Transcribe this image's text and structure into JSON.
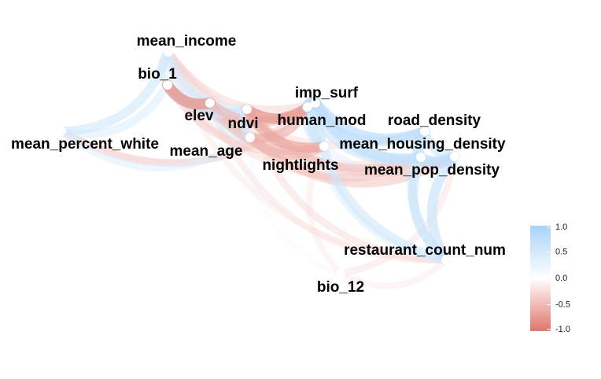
{
  "chart_data": {
    "type": "network",
    "subtype": "correlation_network",
    "title": "",
    "nodes": [
      {
        "id": "mean_income",
        "label": "mean_income"
      },
      {
        "id": "bio_1",
        "label": "bio_1"
      },
      {
        "id": "elev",
        "label": "elev"
      },
      {
        "id": "ndvi",
        "label": "ndvi"
      },
      {
        "id": "mean_age",
        "label": "mean_age"
      },
      {
        "id": "mean_percent_white",
        "label": "mean_percent_white"
      },
      {
        "id": "imp_surf",
        "label": "imp_surf"
      },
      {
        "id": "human_mod",
        "label": "human_mod"
      },
      {
        "id": "nightlights",
        "label": "nightlights"
      },
      {
        "id": "road_density",
        "label": "road_density"
      },
      {
        "id": "mean_housing_density",
        "label": "mean_housing_density"
      },
      {
        "id": "mean_pop_density",
        "label": "mean_pop_density"
      },
      {
        "id": "restaurant_count_num",
        "label": "restaurant_count_num"
      },
      {
        "id": "bio_12",
        "label": "bio_12"
      }
    ],
    "edges": [
      {
        "source": "mean_percent_white",
        "target": "mean_income",
        "r": 0.55
      },
      {
        "source": "mean_percent_white",
        "target": "bio_1",
        "r": 0.45
      },
      {
        "source": "mean_percent_white",
        "target": "mean_age",
        "r": 0.4
      },
      {
        "source": "mean_percent_white",
        "target": "human_mod",
        "r": -0.35
      },
      {
        "source": "mean_percent_white",
        "target": "imp_surf",
        "r": -0.3
      },
      {
        "source": "mean_income",
        "target": "bio_1",
        "r": 0.5
      },
      {
        "source": "mean_income",
        "target": "elev",
        "r": 0.5
      },
      {
        "source": "mean_income",
        "target": "ndvi",
        "r": 0.45
      },
      {
        "source": "mean_income",
        "target": "imp_surf",
        "r": -0.35
      },
      {
        "source": "mean_income",
        "target": "road_density",
        "r": -0.3
      },
      {
        "source": "mean_income",
        "target": "mean_housing_density",
        "r": -0.3
      },
      {
        "source": "mean_income",
        "target": "nightlights",
        "r": -0.35
      },
      {
        "source": "mean_income",
        "target": "restaurant_count_num",
        "r": -0.2
      },
      {
        "source": "mean_income",
        "target": "mean_pop_density",
        "r": -0.25
      },
      {
        "source": "bio_1",
        "target": "elev",
        "r": -0.8
      },
      {
        "source": "bio_1",
        "target": "ndvi",
        "r": 0.55
      },
      {
        "source": "bio_1",
        "target": "human_mod",
        "r": -0.45
      },
      {
        "source": "bio_1",
        "target": "imp_surf",
        "r": -0.35
      },
      {
        "source": "bio_1",
        "target": "nightlights",
        "r": -0.4
      },
      {
        "source": "bio_1",
        "target": "mean_pop_density",
        "r": -0.3
      },
      {
        "source": "bio_1",
        "target": "bio_12",
        "r": 0.1
      },
      {
        "source": "elev",
        "target": "ndvi",
        "r": 0.5
      },
      {
        "source": "elev",
        "target": "mean_age",
        "r": 0.5
      },
      {
        "source": "elev",
        "target": "human_mod",
        "r": -0.55
      },
      {
        "source": "elev",
        "target": "nightlights",
        "r": -0.5
      },
      {
        "source": "elev",
        "target": "mean_housing_density",
        "r": -0.35
      },
      {
        "source": "elev",
        "target": "restaurant_count_num",
        "r": -0.25
      },
      {
        "source": "ndvi",
        "target": "mean_age",
        "r": 0.55
      },
      {
        "source": "ndvi",
        "target": "human_mod",
        "r": -0.7
      },
      {
        "source": "ndvi",
        "target": "nightlights",
        "r": -0.65
      },
      {
        "source": "ndvi",
        "target": "imp_surf",
        "r": -0.6
      },
      {
        "source": "ndvi",
        "target": "mean_housing_density",
        "r": -0.45
      },
      {
        "source": "ndvi",
        "target": "mean_pop_density",
        "r": -0.4
      },
      {
        "source": "ndvi",
        "target": "restaurant_count_num",
        "r": -0.3
      },
      {
        "source": "mean_age",
        "target": "human_mod",
        "r": -0.6
      },
      {
        "source": "mean_age",
        "target": "nightlights",
        "r": -0.55
      },
      {
        "source": "mean_age",
        "target": "mean_pop_density",
        "r": -0.45
      },
      {
        "source": "mean_age",
        "target": "mean_housing_density",
        "r": -0.4
      },
      {
        "source": "mean_age",
        "target": "bio_12",
        "r": 0.15
      },
      {
        "source": "imp_surf",
        "target": "human_mod",
        "r": 0.9
      },
      {
        "source": "imp_surf",
        "target": "road_density",
        "r": 0.75
      },
      {
        "source": "imp_surf",
        "target": "mean_housing_density",
        "r": 0.7
      },
      {
        "source": "imp_surf",
        "target": "nightlights",
        "r": 0.6
      },
      {
        "source": "imp_surf",
        "target": "mean_pop_density",
        "r": 0.6
      },
      {
        "source": "imp_surf",
        "target": "restaurant_count_num",
        "r": 0.55
      },
      {
        "source": "human_mod",
        "target": "road_density",
        "r": 0.6
      },
      {
        "source": "human_mod",
        "target": "mean_housing_density",
        "r": 0.6
      },
      {
        "source": "human_mod",
        "target": "nightlights",
        "r": 0.55
      },
      {
        "source": "human_mod",
        "target": "restaurant_count_num",
        "r": 0.35
      },
      {
        "source": "road_density",
        "target": "mean_housing_density",
        "r": 0.7
      },
      {
        "source": "road_density",
        "target": "mean_pop_density",
        "r": 0.6
      },
      {
        "source": "road_density",
        "target": "restaurant_count_num",
        "r": 0.55
      },
      {
        "source": "mean_housing_density",
        "target": "mean_pop_density",
        "r": 0.75
      },
      {
        "source": "mean_housing_density",
        "target": "restaurant_count_num",
        "r": 0.6
      },
      {
        "source": "mean_pop_density",
        "target": "restaurant_count_num",
        "r": 0.65
      },
      {
        "source": "nightlights",
        "target": "mean_housing_density",
        "r": 0.35
      },
      {
        "source": "nightlights",
        "target": "restaurant_count_num",
        "r": 0.3
      },
      {
        "source": "nightlights",
        "target": "bio_12",
        "r": -0.2
      },
      {
        "source": "bio_12",
        "target": "restaurant_count_num",
        "r": -0.2
      },
      {
        "source": "bio_12",
        "target": "mean_pop_density",
        "r": -0.25
      }
    ],
    "legend": {
      "position": "right",
      "ticks": [
        "1.0",
        "0.5",
        "0.0",
        "-0.5",
        "-1.0"
      ],
      "range": [
        -1,
        1
      ],
      "colors": {
        "negative": "#e0756b",
        "zero": "#ffffff",
        "positive": "#a8d3f7"
      }
    }
  }
}
